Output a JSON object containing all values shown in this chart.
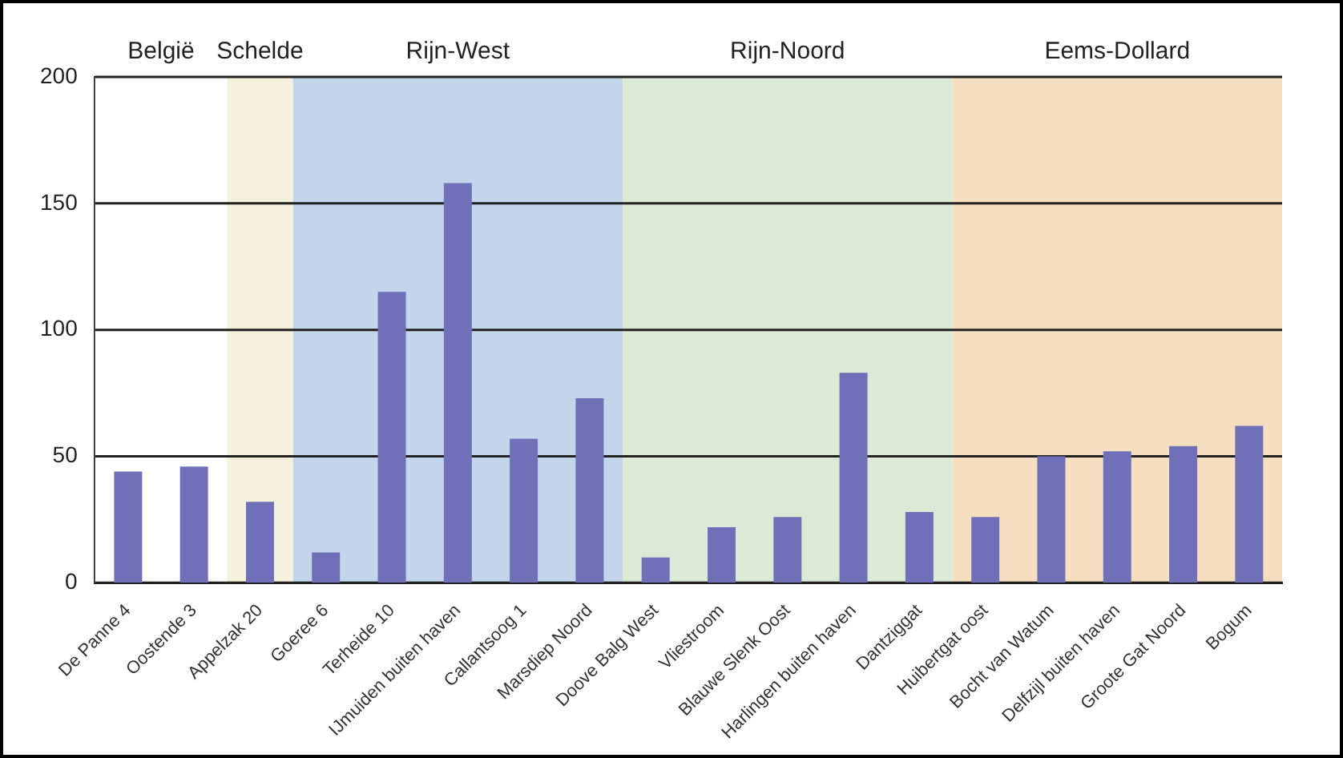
{
  "chart_data": {
    "type": "bar",
    "categories": [
      "De Panne 4",
      "Oostende 3",
      "Appelzak 20",
      "Goeree 6",
      "Terheide 10",
      "IJmuiden buiten haven",
      "Callantsoog 1",
      "Marsdiep Noord",
      "Doove Balg West",
      "Vliestroom",
      "Blauwe Slenk Oost",
      "Harlingen buiten haven",
      "Dantziggat",
      "Huibertgat oost",
      "Bocht van Watum",
      "Delfzijl buiten haven",
      "Groote Gat Noord",
      "Bogum"
    ],
    "values": [
      44,
      46,
      32,
      12,
      115,
      158,
      57,
      73,
      10,
      22,
      26,
      83,
      28,
      26,
      50,
      52,
      54,
      62
    ],
    "color": "#7070b8",
    "ylim": [
      0,
      200
    ],
    "yticks": [
      0,
      50,
      100,
      150,
      200
    ],
    "grid": "y",
    "bands": [
      {
        "axis": "x",
        "from": "De Panne 4",
        "to": "Oostende 3",
        "label": "België",
        "color": "#ffffff"
      },
      {
        "axis": "x",
        "from": "Appelzak 20",
        "to": "Appelzak 20",
        "label": "Schelde",
        "color": "#f4f2dc"
      },
      {
        "axis": "x",
        "from": "Goeree 6",
        "to": "Marsdiep Noord",
        "label": "Rijn-West",
        "color": "#c2d5ea"
      },
      {
        "axis": "x",
        "from": "Doove Balg West",
        "to": "Dantziggat",
        "label": "Rijn-Noord",
        "color": "#dbe9d6"
      },
      {
        "axis": "x",
        "from": "Huibertgat oost",
        "to": "Bogum",
        "label": "Eems-Dollard",
        "color": "#f5dfc0"
      }
    ]
  }
}
